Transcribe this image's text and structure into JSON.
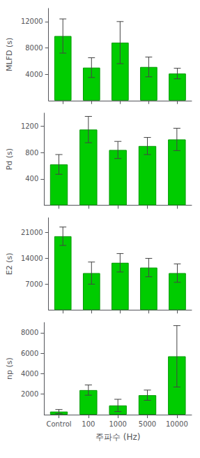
{
  "chart_data": [
    {
      "type": "bar",
      "ylabel": "MLFD (s)",
      "categories": [
        "Control",
        "100",
        "1000",
        "5000",
        "10000"
      ],
      "values": [
        9800,
        5000,
        8800,
        5100,
        4100
      ],
      "errors": [
        2600,
        1500,
        3200,
        1500,
        800
      ],
      "color": "#00CC00",
      "ylim": [
        0,
        14000
      ],
      "yticks": [
        4000,
        8000,
        12000
      ],
      "grid": false,
      "tick_labels": "y"
    },
    {
      "type": "bar",
      "ylabel": "Pd (s)",
      "categories": [
        "Control",
        "100",
        "1000",
        "5000",
        "10000"
      ],
      "values": [
        620,
        1150,
        840,
        900,
        1000
      ],
      "errors": [
        150,
        200,
        130,
        130,
        170
      ],
      "color": "#00CC00",
      "ylim": [
        0,
        1400
      ],
      "yticks": [
        400,
        800,
        1200
      ],
      "grid": false,
      "tick_labels": "y"
    },
    {
      "type": "bar",
      "ylabel": "E2 (s)",
      "categories": [
        "Control",
        "100",
        "1000",
        "5000",
        "10000"
      ],
      "values": [
        20000,
        10000,
        12800,
        11500,
        10000
      ],
      "errors": [
        2500,
        3000,
        2500,
        2500,
        2500
      ],
      "color": "#00CC00",
      "ylim": [
        0,
        25000
      ],
      "yticks": [
        7000,
        14000,
        21000
      ],
      "grid": false,
      "tick_labels": "y"
    },
    {
      "type": "bar",
      "ylabel": "np (s)",
      "xlabel": "주파수 (Hz)",
      "categories": [
        "Control",
        "100",
        "1000",
        "5000",
        "10000"
      ],
      "values": [
        300,
        2400,
        900,
        1900,
        5700
      ],
      "errors": [
        200,
        500,
        600,
        500,
        3000
      ],
      "color": "#00CC00",
      "ylim": [
        0,
        9000
      ],
      "yticks": [
        2000,
        4000,
        6000,
        8000
      ],
      "grid": false,
      "tick_labels": true
    }
  ]
}
